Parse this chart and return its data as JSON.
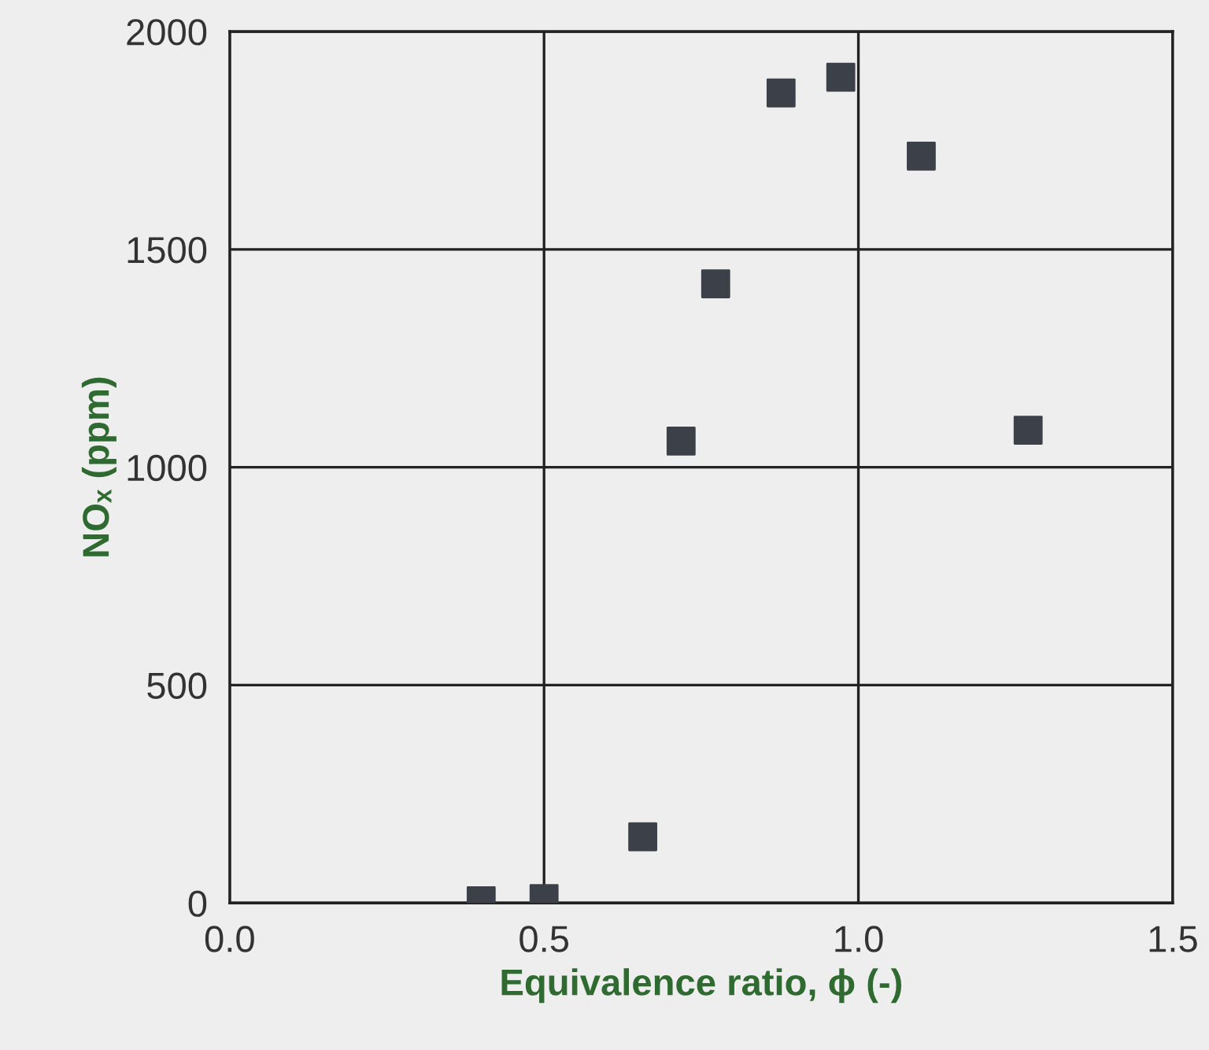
{
  "chart_data": {
    "type": "scatter",
    "xlabel": "Equivalence ratio, ϕ (-)",
    "ylabel": "NOₓ (ppm)",
    "x": [
      0.4,
      0.5,
      0.657,
      0.718,
      0.773,
      0.877,
      0.972,
      1.1,
      1.27
    ],
    "series": [
      {
        "color": "#3c4048",
        "values": [
          5,
          10,
          152,
          1060,
          1421,
          1859,
          1895,
          1714,
          1085
        ]
      }
    ],
    "xlim": [
      0.0,
      1.5
    ],
    "ylim": [
      0,
      2000
    ],
    "xticks": [
      {
        "value": 0.0,
        "label": "0.0"
      },
      {
        "value": 0.5,
        "label": "0.5"
      },
      {
        "value": 1.0,
        "label": "1.0"
      },
      {
        "value": 1.5,
        "label": "1.5"
      }
    ],
    "yticks": [
      0,
      500,
      1000,
      1500,
      2000
    ],
    "grid": true,
    "marker": "square"
  }
}
